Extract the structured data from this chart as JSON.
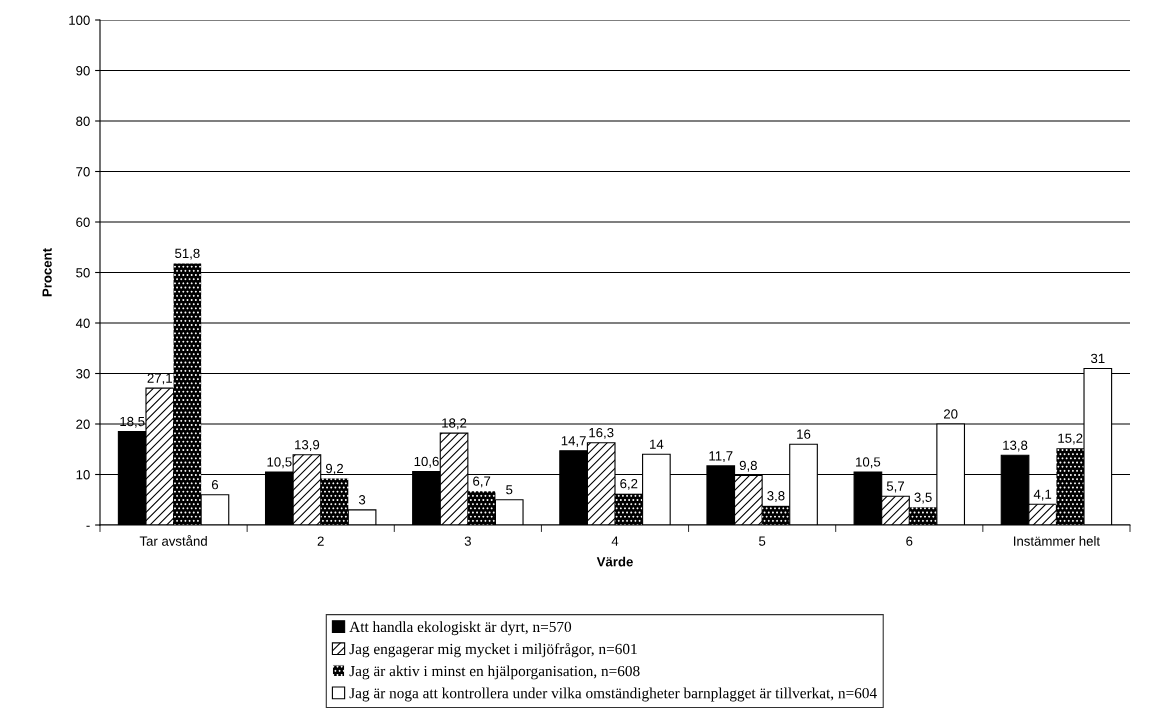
{
  "chart_data": {
    "type": "bar",
    "xlabel": "Värde",
    "ylabel": "Procent",
    "categories": [
      "Tar avstånd",
      "2",
      "3",
      "4",
      "5",
      "6",
      "Instämmer helt"
    ],
    "series": [
      {
        "name": "Att handla ekologiskt är dyrt, n=570",
        "color": "#000000",
        "values": [
          18.5,
          10.5,
          10.6,
          14.7,
          11.7,
          10.5,
          13.8
        ],
        "value_labels": [
          "18,5",
          "10,5",
          "10,6",
          "14,7",
          "11,7",
          "10,5",
          "13,8"
        ]
      },
      {
        "name": "Jag engagerar mig mycket i miljöfrågor, n=601",
        "color": "#000000",
        "values": [
          27.1,
          13.9,
          18.2,
          16.3,
          9.8,
          5.7,
          4.1
        ],
        "value_labels": [
          "27,1",
          "13,9",
          "18,2",
          "16,3",
          "9,8",
          "5,7",
          "4,1"
        ]
      },
      {
        "name": "Jag är aktiv i minst en hjälporganisation, n=608",
        "color": "#000000",
        "values": [
          51.8,
          9.2,
          6.7,
          6.2,
          3.8,
          3.5,
          15.2
        ],
        "value_labels": [
          "51,8",
          "9,2",
          "6,7",
          "6,2",
          "3,8",
          "3,5",
          "15,2"
        ]
      },
      {
        "name": "Jag är noga att kontrollera under vilka omständigheter barnplagget är tillverkat, n=604",
        "color": "#ffffff",
        "values": [
          6,
          3,
          5,
          14,
          16,
          20,
          31
        ],
        "value_labels": [
          "6",
          "3",
          "5",
          "14",
          "16",
          "20",
          "31"
        ]
      }
    ],
    "ylim": [
      0,
      100
    ],
    "yticks": [
      {
        "value": 0,
        "label": "-"
      },
      10,
      20,
      30,
      40,
      50,
      60,
      70,
      80,
      90,
      100
    ],
    "grid": "y",
    "legend": "bottom"
  }
}
